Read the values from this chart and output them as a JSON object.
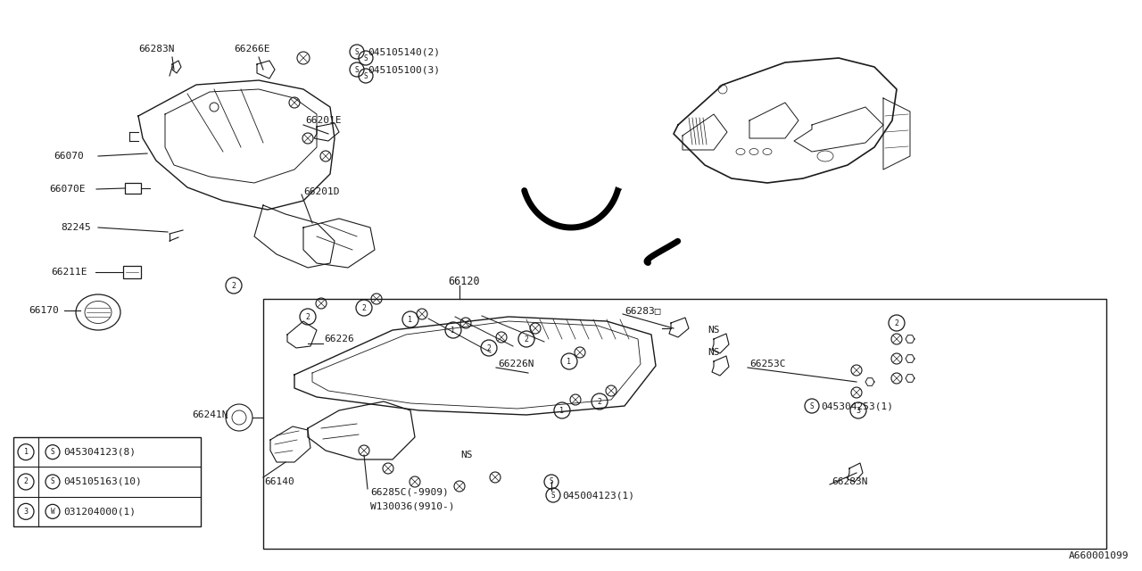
{
  "bg_color": "#ffffff",
  "line_color": "#1a1a1a",
  "diagram_id": "A660001099",
  "legend": [
    {
      "num": "1",
      "symbol": "S",
      "code": "045304123(8)"
    },
    {
      "num": "2",
      "symbol": "S",
      "code": "045105163(10)"
    },
    {
      "num": "3",
      "symbol": "W",
      "code": "031204000(1)"
    }
  ],
  "figsize": [
    12.8,
    6.4
  ],
  "dpi": 100,
  "xlim": [
    0,
    1280
  ],
  "ylim": [
    0,
    640
  ]
}
